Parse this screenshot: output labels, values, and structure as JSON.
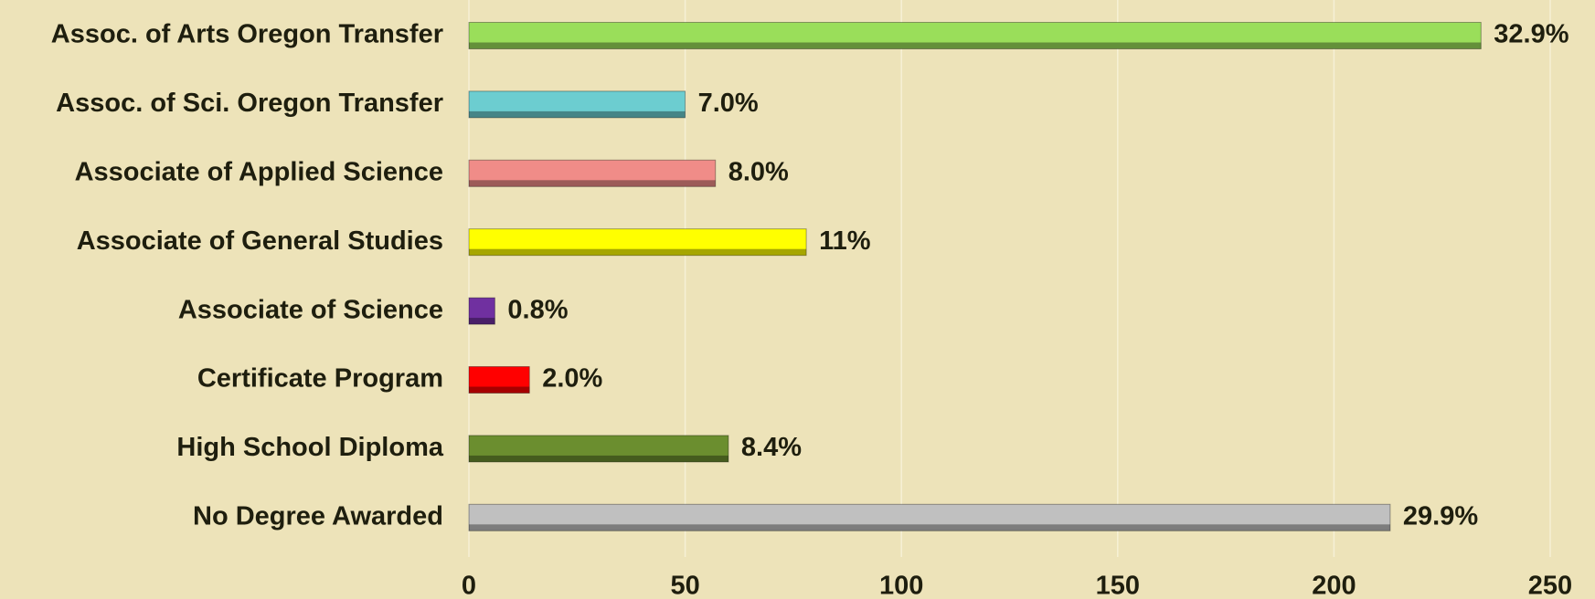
{
  "chart_data": {
    "type": "bar",
    "orientation": "horizontal",
    "categories": [
      "Assoc. of Arts Oregon Transfer",
      "Assoc. of Sci. Oregon Transfer",
      "Associate of Applied Science",
      "Associate of General Studies",
      "Associate of Science",
      "Certificate Program",
      "High School Diploma",
      "No Degree Awarded"
    ],
    "values": [
      234,
      50,
      57,
      78,
      6,
      14,
      60,
      213
    ],
    "percent_labels": [
      "32.9%",
      "7.0%",
      "8.0%",
      "11%",
      "0.8%",
      "2.0%",
      "8.4%",
      "29.9%"
    ],
    "colors": [
      "#9ade5a",
      "#6ccdd0",
      "#f08c88",
      "#ffff00",
      "#7030a0",
      "#ff0000",
      "#6b8e2f",
      "#c0c0c0"
    ],
    "xlim": [
      0,
      250
    ],
    "xticks": [
      0,
      50,
      100,
      150,
      200,
      250
    ],
    "grid": true
  }
}
